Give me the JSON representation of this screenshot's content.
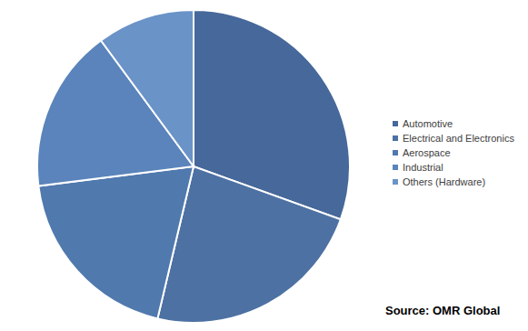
{
  "chart_data": {
    "type": "pie",
    "categories": [
      "Automotive",
      "Electrical and Electronics",
      "Aerospace",
      "Industrial",
      "Others (Hardware)"
    ],
    "values": [
      30.5,
      23.2,
      19.3,
      16.9,
      10.1
    ],
    "colors": [
      "#46689a",
      "#4d71a3",
      "#5079ae",
      "#5a84bb",
      "#6a93c8"
    ],
    "legend": "right",
    "annotations": [
      "Source: OMR Global"
    ]
  }
}
